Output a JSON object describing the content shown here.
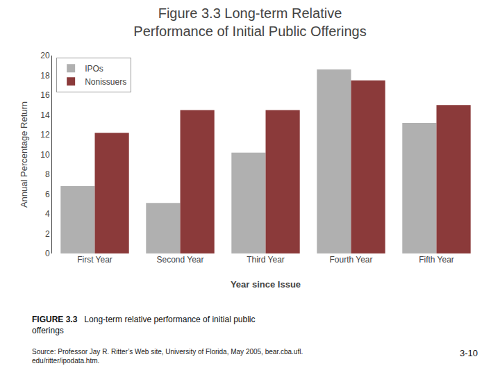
{
  "chart_data": {
    "type": "bar",
    "title": "Figure 3.3 Long-term Relative\nPerformance of Initial Public Offerings",
    "x_label": "Year since Issue",
    "y_label": "Annual Percentage Return",
    "categories": [
      "First Year",
      "Second Year",
      "Third Year",
      "Fourth Year",
      "Fifth Year"
    ],
    "series": [
      {
        "name": "IPOs",
        "color": "#b0b0b0",
        "values": [
          6.8,
          5.1,
          10.2,
          18.6,
          13.2
        ]
      },
      {
        "name": "Nonissuers",
        "color": "#8b3a3a",
        "values": [
          12.2,
          14.5,
          14.5,
          17.5,
          15.0
        ]
      }
    ],
    "ylim": [
      0,
      20
    ],
    "yticks": [
      0,
      2,
      4,
      6,
      8,
      10,
      12,
      14,
      16,
      18,
      20
    ],
    "grid": false,
    "legend": "upper left",
    "annotations": [
      "FIGURE 3.3",
      "Long-term relative performance of initial public\nofferings",
      "Source: Professor Jay R. Ritter’s Web site, University of Florida, May 2005, bear.cba.ufl.\nedu/ritter/ipodata.htm.",
      "3-10"
    ]
  }
}
